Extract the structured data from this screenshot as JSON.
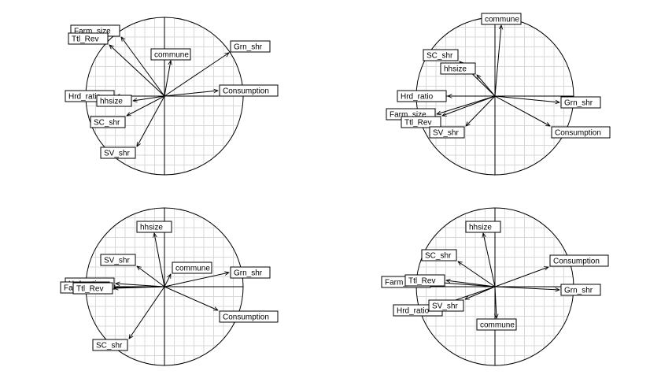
{
  "chart_data": [
    {
      "type": "correlation-circle",
      "grid": true,
      "vectors": [
        {
          "label": "Farm_size",
          "x": -0.55,
          "y": 0.75
        },
        {
          "label": "Ttl_Rev",
          "x": -0.7,
          "y": 0.65
        },
        {
          "label": "commune",
          "x": 0.08,
          "y": 0.45
        },
        {
          "label": "Grn_shr",
          "x": 0.82,
          "y": 0.55
        },
        {
          "label": "Consumption",
          "x": 0.68,
          "y": 0.07
        },
        {
          "label": "Hrd_ratio",
          "x": -0.62,
          "y": 0.0
        },
        {
          "label": "hhsize",
          "x": -0.4,
          "y": -0.06
        },
        {
          "label": "SC_shr",
          "x": -0.48,
          "y": -0.25
        },
        {
          "label": "SV_shr",
          "x": -0.35,
          "y": -0.64
        }
      ]
    },
    {
      "type": "correlation-circle",
      "grid": true,
      "vectors": [
        {
          "label": "commune",
          "x": 0.08,
          "y": 0.9
        },
        {
          "label": "SC_shr",
          "x": -0.45,
          "y": 0.44
        },
        {
          "label": "hhsize",
          "x": -0.23,
          "y": 0.27
        },
        {
          "label": "Hrd_ratio",
          "x": -0.6,
          "y": 0.0
        },
        {
          "label": "Grn_shr",
          "x": 0.82,
          "y": -0.08
        },
        {
          "label": "Farm_size",
          "x": -0.74,
          "y": -0.23
        },
        {
          "label": "Ttl_Rev",
          "x": -0.67,
          "y": -0.25
        },
        {
          "label": "SV_shr",
          "x": -0.37,
          "y": -0.38
        },
        {
          "label": "Consumption",
          "x": 0.7,
          "y": -0.38
        }
      ]
    },
    {
      "type": "correlation-circle",
      "grid": true,
      "vectors": [
        {
          "label": "hhsize",
          "x": -0.13,
          "y": 0.68
        },
        {
          "label": "SV_shr",
          "x": -0.35,
          "y": 0.26
        },
        {
          "label": "commune",
          "x": 0.08,
          "y": 0.16
        },
        {
          "label": "Grn_shr",
          "x": 0.82,
          "y": 0.18
        },
        {
          "label": "Hrd_ratio",
          "x": -0.62,
          "y": 0.04
        },
        {
          "label": "Farm_size",
          "x": -0.68,
          "y": -0.01
        },
        {
          "label": "Ttl_Rev",
          "x": -0.64,
          "y": -0.02
        },
        {
          "label": "Consumption",
          "x": 0.68,
          "y": -0.3
        },
        {
          "label": "SC_shr",
          "x": -0.45,
          "y": -0.66
        }
      ]
    },
    {
      "type": "correlation-circle",
      "grid": true,
      "vectors": [
        {
          "label": "hhsize",
          "x": -0.15,
          "y": 0.68
        },
        {
          "label": "SC_shr",
          "x": -0.47,
          "y": 0.32
        },
        {
          "label": "Consumption",
          "x": 0.68,
          "y": 0.25
        },
        {
          "label": "Farm_size",
          "x": -0.8,
          "y": 0.06
        },
        {
          "label": "Ttl_Rev",
          "x": -0.62,
          "y": 0.08
        },
        {
          "label": "Grn_shr",
          "x": 0.82,
          "y": -0.04
        },
        {
          "label": "Hrd_ratio",
          "x": -0.65,
          "y": -0.22
        },
        {
          "label": "SV_shr",
          "x": -0.38,
          "y": -0.16
        },
        {
          "label": "commune",
          "x": 0.02,
          "y": -0.4
        }
      ]
    }
  ]
}
